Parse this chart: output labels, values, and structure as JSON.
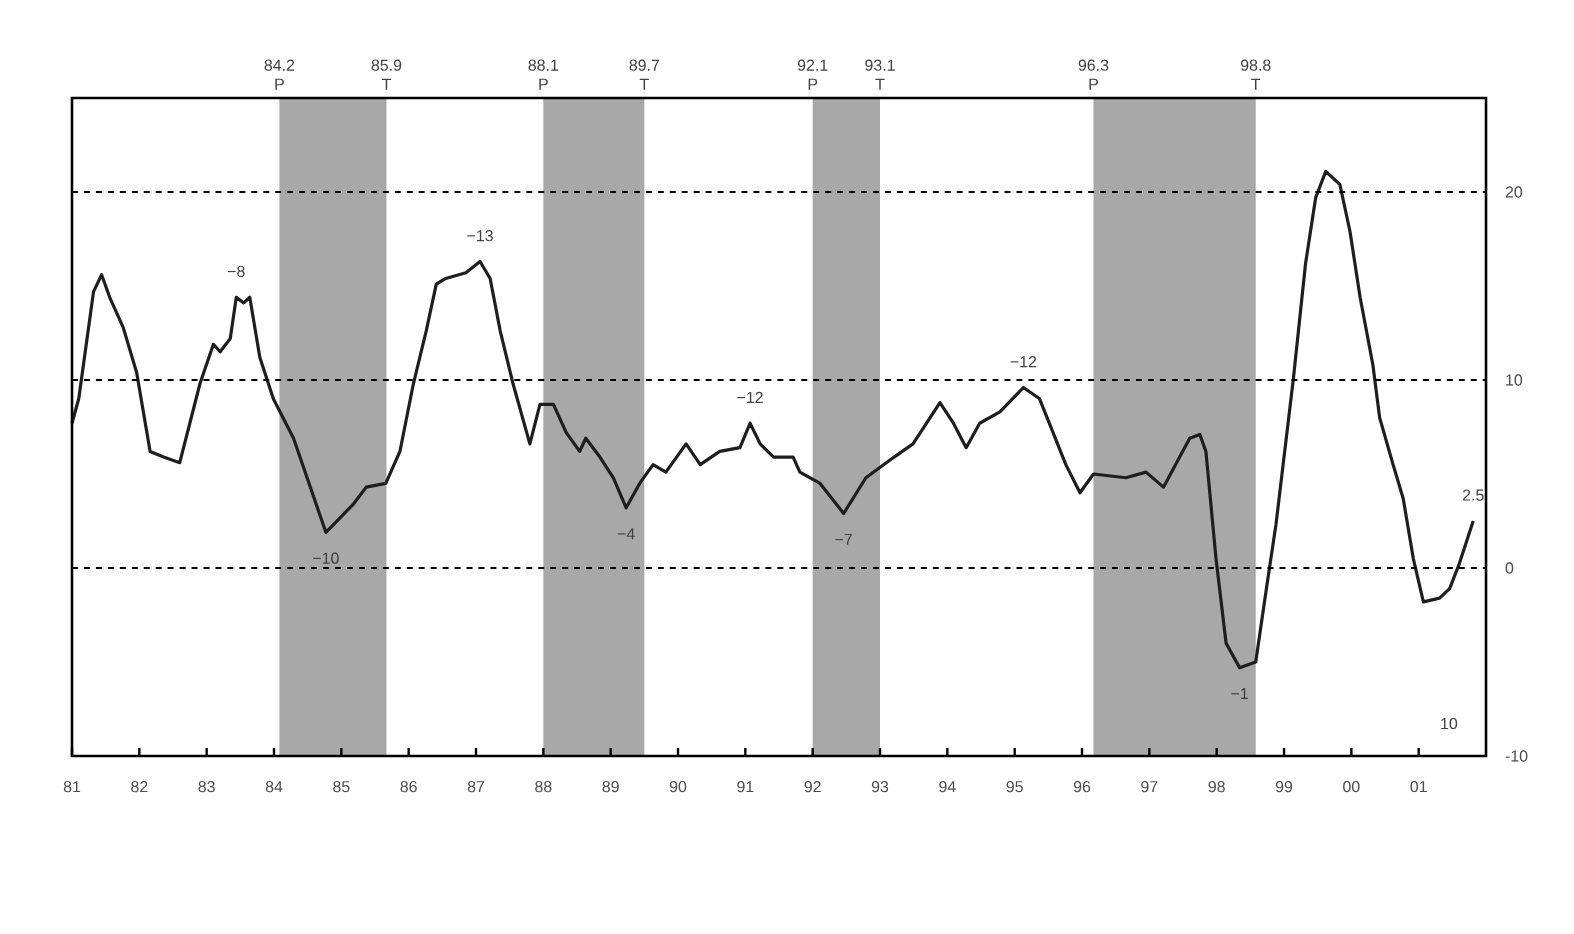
{
  "chart_data": {
    "type": "line",
    "x": [
      1981.0,
      1981.1,
      1981.32,
      1981.44,
      1981.56,
      1981.76,
      1981.96,
      1982.16,
      1982.36,
      1982.6,
      1982.9,
      1983.1,
      1983.2,
      1983.35,
      1983.44,
      1983.55,
      1983.64,
      1983.79,
      1983.99,
      1984.29,
      1984.77,
      1984.88,
      1985.18,
      1985.37,
      1985.66,
      1985.87,
      1986.07,
      1986.26,
      1986.41,
      1986.55,
      1986.85,
      1987.06,
      1987.21,
      1987.36,
      1987.55,
      1987.8,
      1987.95,
      1988.15,
      1988.34,
      1988.54,
      1988.63,
      1988.84,
      1989.04,
      1989.23,
      1989.43,
      1989.63,
      1989.82,
      1990.12,
      1990.33,
      1990.62,
      1990.92,
      1991.07,
      1991.22,
      1991.42,
      1991.71,
      1991.81,
      1992.11,
      1992.46,
      1992.79,
      1993.21,
      1993.49,
      1993.89,
      1994.09,
      1994.28,
      1994.48,
      1994.78,
      1995.13,
      1995.37,
      1995.57,
      1995.76,
      1995.97,
      1996.17,
      1996.65,
      1996.95,
      1997.21,
      1997.45,
      1997.6,
      1997.75,
      1997.84,
      1997.99,
      1998.14,
      1998.34,
      1998.58,
      1998.73,
      1998.88,
      1999.14,
      1999.32,
      1999.47,
      1999.62,
      1999.83,
      1999.98,
      2000.13,
      2000.32,
      2000.42,
      2000.62,
      2000.77,
      2000.92,
      2001.07,
      2001.31,
      2001.46,
      2001.6,
      2001.81
    ],
    "series": [
      {
        "color": "#1e1e1e",
        "values": [
          7.7,
          9.0,
          14.7,
          15.6,
          14.4,
          12.8,
          10.4,
          6.2,
          5.9,
          5.6,
          9.8,
          11.9,
          11.5,
          12.2,
          14.4,
          14.1,
          14.4,
          11.2,
          9.0,
          6.9,
          1.9,
          2.3,
          3.4,
          4.3,
          4.5,
          6.2,
          9.8,
          12.6,
          15.1,
          15.4,
          15.7,
          16.3,
          15.4,
          12.6,
          9.8,
          6.6,
          8.7,
          8.7,
          7.2,
          6.2,
          6.9,
          5.9,
          4.8,
          3.2,
          4.5,
          5.5,
          5.1,
          6.6,
          5.5,
          6.2,
          6.4,
          7.7,
          6.6,
          5.9,
          5.9,
          5.1,
          4.5,
          2.9,
          4.8,
          5.9,
          6.6,
          8.8,
          7.7,
          6.4,
          7.7,
          8.3,
          9.6,
          9.0,
          7.2,
          5.5,
          4.0,
          5.0,
          4.8,
          5.1,
          4.3,
          5.9,
          6.9,
          7.1,
          6.2,
          0.5,
          -4.0,
          -5.3,
          -5.0,
          -1.3,
          2.3,
          10.1,
          16.2,
          19.7,
          21.1,
          20.4,
          17.9,
          14.4,
          10.8,
          8.0,
          5.5,
          3.7,
          0.5,
          -1.8,
          -1.6,
          -1.1,
          0.2,
          2.5
        ]
      }
    ],
    "xlim": [
      1981,
      2002
    ],
    "xticks": [
      {
        "value": 1981,
        "label": "81"
      },
      {
        "value": 1982,
        "label": "82"
      },
      {
        "value": 1983,
        "label": "83"
      },
      {
        "value": 1984,
        "label": "84"
      },
      {
        "value": 1985,
        "label": "85"
      },
      {
        "value": 1986,
        "label": "86"
      },
      {
        "value": 1987,
        "label": "87"
      },
      {
        "value": 1988,
        "label": "88"
      },
      {
        "value": 1989,
        "label": "89"
      },
      {
        "value": 1990,
        "label": "90"
      },
      {
        "value": 1991,
        "label": "91"
      },
      {
        "value": 1992,
        "label": "92"
      },
      {
        "value": 1993,
        "label": "93"
      },
      {
        "value": 1994,
        "label": "94"
      },
      {
        "value": 1995,
        "label": "95"
      },
      {
        "value": 1996,
        "label": "96"
      },
      {
        "value": 1997,
        "label": "97"
      },
      {
        "value": 1998,
        "label": "98"
      },
      {
        "value": 1999,
        "label": "99"
      },
      {
        "value": 2000,
        "label": "00"
      },
      {
        "value": 2001,
        "label": "01"
      }
    ],
    "ylim": [
      -10,
      25
    ],
    "yticks": [
      -10,
      0,
      10,
      20
    ],
    "grid": "y",
    "marker": "none",
    "bands": [
      {
        "axis": "x",
        "from": 1984.08,
        "to": 1985.67,
        "color": "#a8a8a8"
      },
      {
        "axis": "x",
        "from": 1988.0,
        "to": 1989.5,
        "color": "#a8a8a8"
      },
      {
        "axis": "x",
        "from": 1992.0,
        "to": 1993.0,
        "color": "#a8a8a8"
      },
      {
        "axis": "x",
        "from": 1996.17,
        "to": 1998.58,
        "color": "#a8a8a8"
      }
    ],
    "annotations": [
      {
        "text": "84.2 P",
        "x": 1984.08,
        "y": 25
      },
      {
        "text": "85.9 T",
        "x": 1985.67,
        "y": 25
      },
      {
        "text": "88.1 P",
        "x": 1988.0,
        "y": 25
      },
      {
        "text": "89.7 T",
        "x": 1989.5,
        "y": 25
      },
      {
        "text": "92.1 P",
        "x": 1992.0,
        "y": 25
      },
      {
        "text": "93.1 T",
        "x": 1993.0,
        "y": 25
      },
      {
        "text": "96.3 P",
        "x": 1996.17,
        "y": 25
      },
      {
        "text": "98.8 T",
        "x": 1998.58,
        "y": 25
      },
      {
        "text": "−8",
        "x": 1983.44,
        "y": 14.4
      },
      {
        "text": "−13",
        "x": 1987.06,
        "y": 16.3
      },
      {
        "text": "−12",
        "x": 1991.07,
        "y": 7.7
      },
      {
        "text": "−12",
        "x": 1995.13,
        "y": 9.6
      },
      {
        "text": "−10",
        "x": 1984.77,
        "y": 1.9
      },
      {
        "text": "−4",
        "x": 1989.23,
        "y": 3.2
      },
      {
        "text": "−7",
        "x": 1992.46,
        "y": 2.9
      },
      {
        "text": "−1",
        "x": 1998.34,
        "y": -5.3
      },
      {
        "text": "2.5",
        "x": 2001.81,
        "y": 2.5
      },
      "10"
    ]
  }
}
